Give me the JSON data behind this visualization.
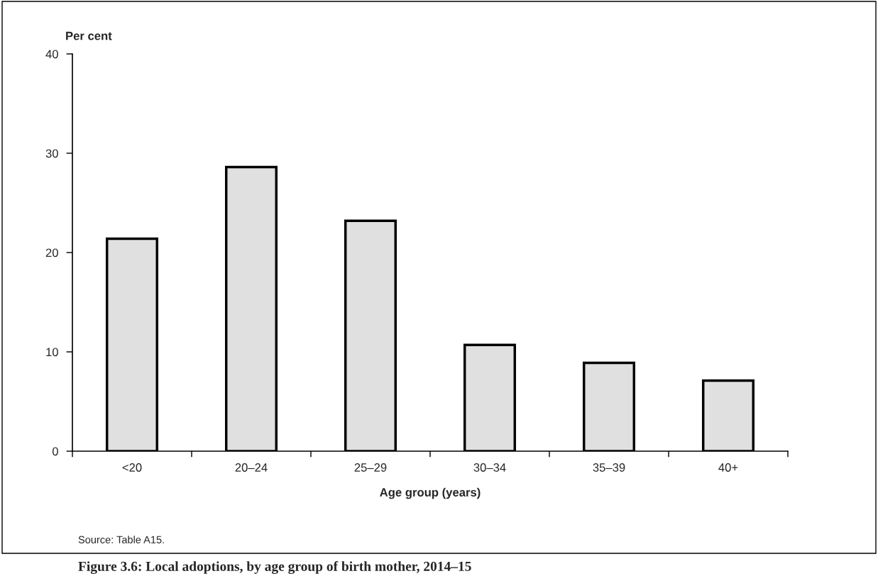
{
  "chart_data": {
    "type": "bar",
    "title": "Figure 3.6: Local adoptions, by age group of birth mother, 2014–15",
    "ylabel": "Per cent",
    "xlabel": "Age group (years)",
    "categories": [
      "<20",
      "20–24",
      "25–29",
      "30–34",
      "35–39",
      "40+"
    ],
    "values": [
      21.4,
      28.6,
      23.2,
      10.7,
      8.9,
      7.1
    ],
    "color": "#e0e0e0",
    "ylim": [
      0,
      40
    ],
    "yticks": [
      0,
      10,
      20,
      30,
      40
    ],
    "grid": false,
    "legend": false,
    "annotations": [
      "Source: Table A15."
    ]
  }
}
